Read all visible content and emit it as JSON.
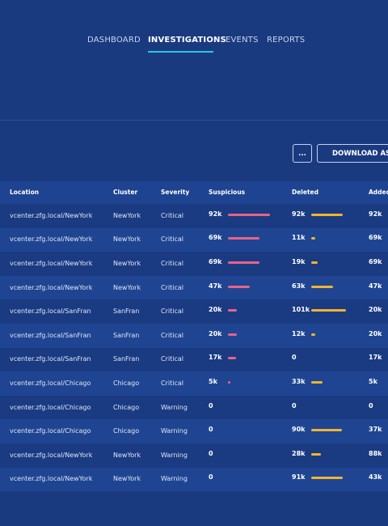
{
  "nav": {
    "items": [
      "DASHBOARD",
      "INVESTIGATIONS",
      "EVENTS",
      "REPORTS"
    ]
  },
  "toolbar": {
    "more": "...",
    "download": "DOWNLOAD AS CSV"
  },
  "table": {
    "columns": [
      "Location",
      "Cluster",
      "Severity",
      "Suspicious",
      "Deleted",
      "Added"
    ],
    "rows": [
      [
        "vcenter.zfg.local/NewYork",
        "NewYork",
        "Critical",
        {
          "value": 92000,
          "label": "92k"
        },
        {
          "value": 92000,
          "label": "92k"
        },
        {
          "value": 92000,
          "label": "92k"
        }
      ],
      [
        "vcenter.zfg.local/NewYork",
        "NewYork",
        "Critical",
        {
          "value": 69000,
          "label": "69k"
        },
        {
          "value": 11000,
          "label": "11k"
        },
        {
          "value": 69000,
          "label": "69k"
        }
      ],
      [
        "vcenter.zfg.local/NewYork",
        "NewYork",
        "Critical",
        {
          "value": 69000,
          "label": "69k"
        },
        {
          "value": 19000,
          "label": "19k"
        },
        {
          "value": 69000,
          "label": "69k"
        }
      ],
      [
        "vcenter.zfg.local/NewYork",
        "NewYork",
        "Critical",
        {
          "value": 47000,
          "label": "47k"
        },
        {
          "value": 63000,
          "label": "63k"
        },
        {
          "value": 47000,
          "label": "47k"
        }
      ],
      [
        "vcenter.zfg.local/SanFran",
        "SanFran",
        "Critical",
        {
          "value": 20000,
          "label": "20k"
        },
        {
          "value": 101000,
          "label": "101k"
        },
        {
          "value": 20000,
          "label": "20k"
        }
      ],
      [
        "vcenter.zfg.local/SanFran",
        "SanFran",
        "Critical",
        {
          "value": 20000,
          "label": "20k"
        },
        {
          "value": 12000,
          "label": "12k"
        },
        {
          "value": 20000,
          "label": "20k"
        }
      ],
      [
        "vcenter.zfg.local/SanFran",
        "SanFran",
        "Critical",
        {
          "value": 17000,
          "label": "17k"
        },
        0,
        {
          "value": 17000,
          "label": "17k"
        }
      ],
      [
        "vcenter.zfg.local/Chicago",
        "Chicago",
        "Critical",
        {
          "value": 5000,
          "label": "5k"
        },
        {
          "value": 33000,
          "label": "33k"
        },
        {
          "value": 5000,
          "label": "5k"
        }
      ],
      [
        "vcenter.zfg.local/Chicago",
        "Chicago",
        "Warning",
        0,
        0,
        0
      ],
      [
        "vcenter.zfg.local/Chicago",
        "Chicago",
        "Warning",
        0,
        {
          "value": 90000,
          "label": "90k"
        },
        {
          "value": 37000,
          "label": "37k"
        }
      ],
      [
        "vcenter.zfg.local/NewYork",
        "NewYork",
        "Warning",
        0,
        {
          "value": 28000,
          "label": "28k"
        },
        {
          "value": 88000,
          "label": "88k"
        }
      ],
      [
        "vcenter.zfg.local/NewYork",
        "NewYork",
        "Warning",
        0,
        {
          "value": 91000,
          "label": "91k"
        },
        {
          "value": 43000,
          "label": "43k"
        }
      ]
    ]
  }
}
